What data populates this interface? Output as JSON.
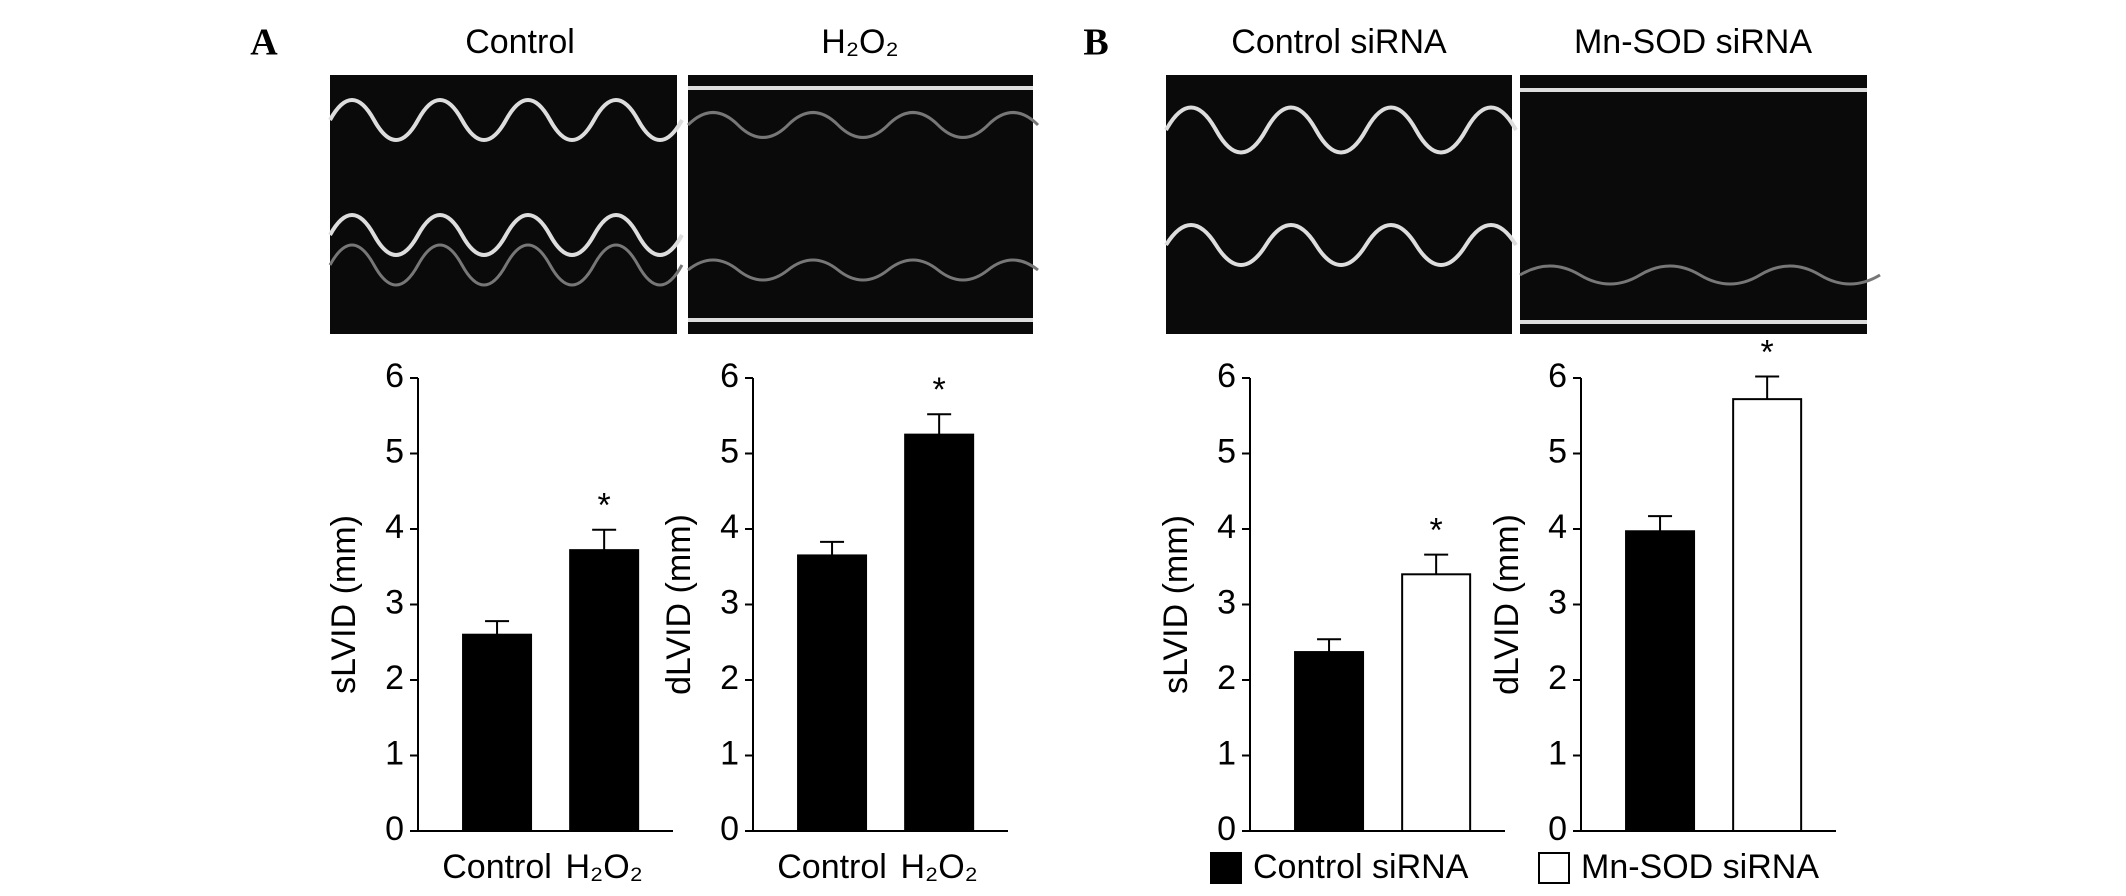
{
  "panel_labels": [
    "A",
    "B"
  ],
  "image_titles": [
    "Control",
    "H₂O₂",
    "Control siRNA",
    "Mn-SOD siRNA"
  ],
  "legend": [
    {
      "name": "Control siRNA",
      "color": "#000000"
    },
    {
      "name": "Mn-SOD siRNA",
      "color": "#ffffff"
    }
  ],
  "chart_data": [
    {
      "type": "bar",
      "ylabel": "sLVID (mm)",
      "categories": [
        "Control",
        "H₂O₂"
      ],
      "values": [
        2.6,
        3.72
      ],
      "errors": [
        0.18,
        0.27
      ],
      "colors": [
        "#000000",
        "#000000"
      ],
      "annotations": [
        null,
        "*"
      ],
      "ylim": [
        0,
        6
      ],
      "yticks": [
        0,
        1,
        2,
        3,
        4,
        5,
        6
      ]
    },
    {
      "type": "bar",
      "ylabel": "dLVID (mm)",
      "categories": [
        "Control",
        "H₂O₂"
      ],
      "values": [
        3.65,
        5.25
      ],
      "errors": [
        0.18,
        0.27
      ],
      "colors": [
        "#000000",
        "#000000"
      ],
      "annotations": [
        null,
        "*"
      ],
      "ylim": [
        0,
        6
      ],
      "yticks": [
        0,
        1,
        2,
        3,
        4,
        5,
        6
      ]
    },
    {
      "type": "bar",
      "ylabel": "sLVID (mm)",
      "categories": [
        null,
        null
      ],
      "values": [
        2.37,
        3.4
      ],
      "errors": [
        0.17,
        0.26
      ],
      "colors": [
        "#000000",
        "#ffffff"
      ],
      "annotations": [
        null,
        "*"
      ],
      "ylim": [
        0,
        6
      ],
      "yticks": [
        0,
        1,
        2,
        3,
        4,
        5,
        6
      ]
    },
    {
      "type": "bar",
      "ylabel": "dLVID (mm)",
      "categories": [
        null,
        null
      ],
      "values": [
        3.97,
        5.72
      ],
      "errors": [
        0.2,
        0.3
      ],
      "colors": [
        "#000000",
        "#ffffff"
      ],
      "annotations": [
        null,
        "*"
      ],
      "ylim": [
        0,
        6
      ],
      "yticks": [
        0,
        1,
        2,
        3,
        4,
        5,
        6
      ]
    }
  ]
}
